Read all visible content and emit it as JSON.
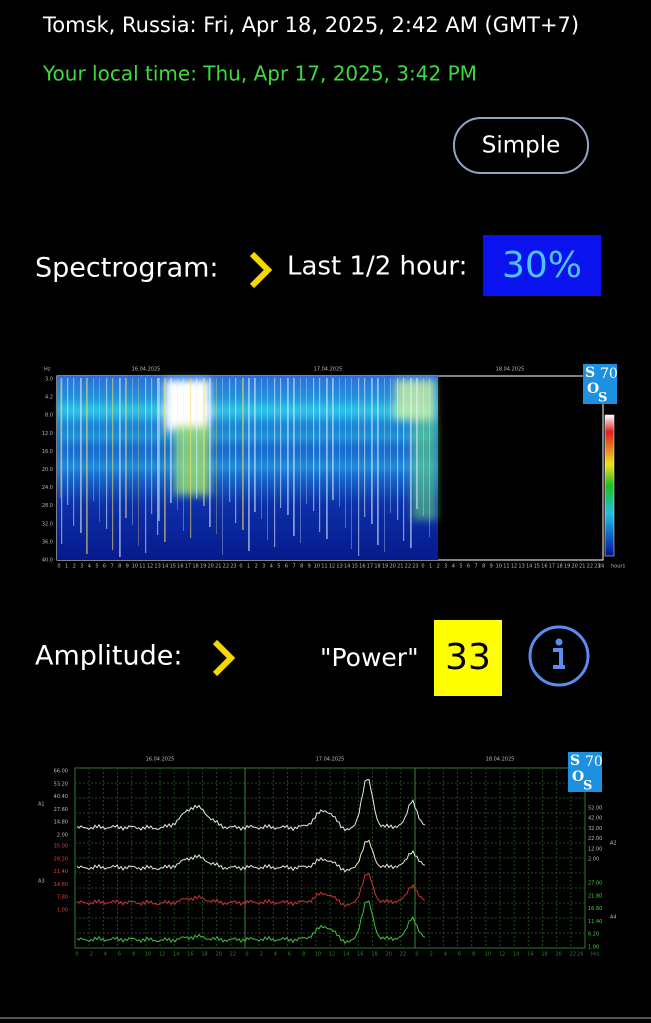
{
  "header": {
    "location_time": "Tomsk, Russia: Fri, Apr 18, 2025, 2:42 AM (GMT+7)",
    "local_time": "Your local time: Thu, Apr 17, 2025, 3:42 PM"
  },
  "mode_button": "Simple",
  "spectrogram": {
    "label": "Spectrogram:",
    "period": "Last 1/2 hour:",
    "percent": "30%",
    "dates": [
      "16.04.2025",
      "17.04.2025",
      "18.04.2025"
    ],
    "y_unit": "Hz",
    "y_labels": [
      "3.0",
      "4.2",
      "8.0",
      "12.0",
      "16.0",
      "20.0",
      "24.0",
      "28.0",
      "32.0",
      "36.0",
      "40.0"
    ],
    "hour_labels": [
      "0",
      "1",
      "2",
      "3",
      "4",
      "5",
      "6",
      "7",
      "8",
      "9",
      "10",
      "11",
      "12",
      "13",
      "14",
      "15",
      "16",
      "17",
      "18",
      "19",
      "20",
      "21",
      "22",
      "23"
    ],
    "end_label": "24",
    "hours_unit": "hours"
  },
  "logo": {
    "letters": [
      "S",
      "O",
      "S"
    ],
    "number": "70"
  },
  "amplitude": {
    "label": "Amplitude:",
    "power_label": "\"Power\"",
    "power_value": "33",
    "dates": [
      "16.04.2025",
      "17.04.2025",
      "18.04.2025"
    ],
    "left_top_labels": [
      "66.00",
      "53.20",
      "40.40",
      "27.60",
      "14.80",
      "2.00"
    ],
    "left_bottom_labels": [
      "35.00",
      "28.20",
      "21.40",
      "14.60",
      "7.80",
      "1.00"
    ],
    "right_top_labels": [
      "52.00",
      "42.00",
      "32.00",
      "22.00",
      "12.00",
      "2.00"
    ],
    "right_bottom_labels": [
      "27.00",
      "21.80",
      "16.60",
      "11.40",
      "6.20",
      "1.00"
    ],
    "channel_labels": [
      "A1",
      "A2",
      "A3",
      "A4"
    ],
    "hour_labels": [
      "0",
      "2",
      "4",
      "6",
      "8",
      "10",
      "12",
      "14",
      "16",
      "18",
      "20",
      "22"
    ],
    "end_label": "24",
    "hours_unit": "Hrs"
  }
}
